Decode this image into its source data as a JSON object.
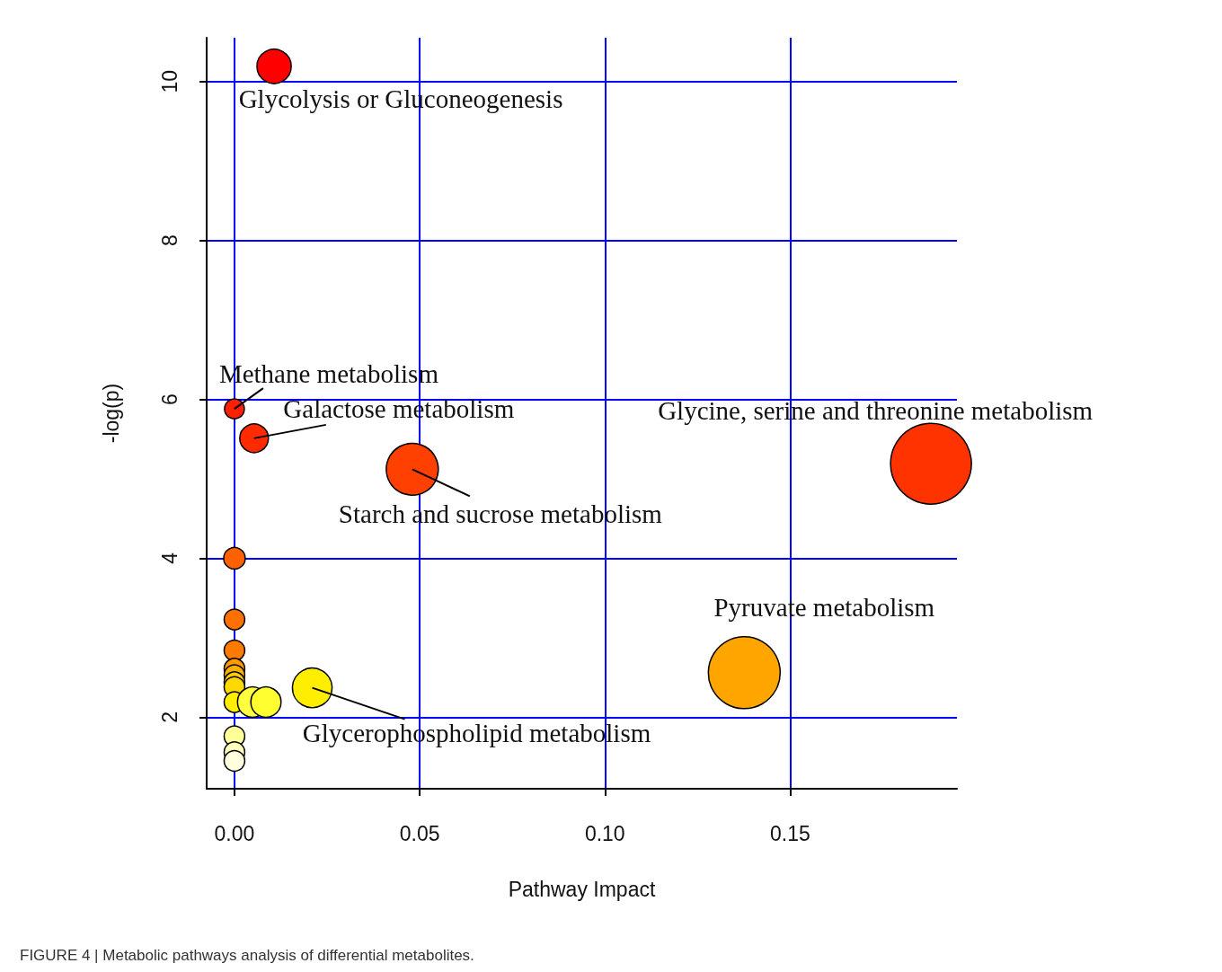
{
  "chart_data": {
    "type": "bubble",
    "xlabel": "Pathway Impact",
    "ylabel": "-log(p)",
    "xlim": [
      -0.0075,
      0.195
    ],
    "ylim": [
      1.1,
      10.55
    ],
    "xticks": [
      {
        "value": 0,
        "label": "0.00"
      },
      {
        "value": 0.05,
        "label": "0.05"
      },
      {
        "value": 0.1,
        "label": "0.10"
      },
      {
        "value": 0.15,
        "label": "0.15"
      }
    ],
    "yticks": [
      2,
      4,
      6,
      8,
      10
    ],
    "grid": true,
    "marker": "circle",
    "series": [
      {
        "x": [
          0.0107,
          0,
          0.0053,
          0.048,
          0.188,
          0.1376,
          0,
          0,
          0,
          0,
          0,
          0,
          0,
          0,
          0.0049,
          0.0085,
          0.021,
          0,
          0,
          0
        ],
        "values": [
          10.19,
          5.88,
          5.51,
          5.12,
          5.19,
          2.56,
          4.0,
          3.23,
          2.84,
          2.61,
          2.53,
          2.44,
          2.38,
          2.19,
          2.19,
          2.19,
          2.37,
          1.76,
          1.56,
          1.45
        ],
        "sizes": [
          0.18,
          0.06,
          0.126,
          0.415,
          1,
          0.79,
          0.071,
          0.065,
          0.065,
          0.065,
          0.065,
          0.065,
          0.065,
          0.065,
          0.14,
          0.14,
          0.24,
          0.065,
          0.065,
          0.065
        ],
        "colors": [
          "#ff0000",
          "#ff2000",
          "#ff2a00",
          "#ff4000",
          "#ff3300",
          "#ffa500",
          "#ff6000",
          "#ff7000",
          "#ff7a00",
          "#ff9900",
          "#ffb000",
          "#ffcc00",
          "#ffd800",
          "#ffee00",
          "#ffff40",
          "#ffff30",
          "#ffee00",
          "#ffff99",
          "#ffffbb",
          "#ffffdd"
        ]
      }
    ],
    "annotations": [
      {
        "text": "Glycolysis or Gluconeogenesis",
        "x": 0.0107,
        "y": 10.19
      },
      {
        "text": "Methane metabolism",
        "x": 0,
        "y": 5.88
      },
      {
        "text": "Galactose metabolism",
        "x": 0.0053,
        "y": 5.51
      },
      {
        "text": "Starch and sucrose metabolism",
        "x": 0.048,
        "y": 5.12
      },
      {
        "text": "Glycine, serine and threonine metabolism",
        "x": 0.188,
        "y": 5.19
      },
      {
        "text": "Pyruvate metabolism",
        "x": 0.1376,
        "y": 2.56
      },
      {
        "text": "Glycerophospholipid metabolism",
        "x": 0.021,
        "y": 2.37
      },
      "FIGURE 4 | Metabolic pathways analysis of differential metabolites."
    ]
  }
}
